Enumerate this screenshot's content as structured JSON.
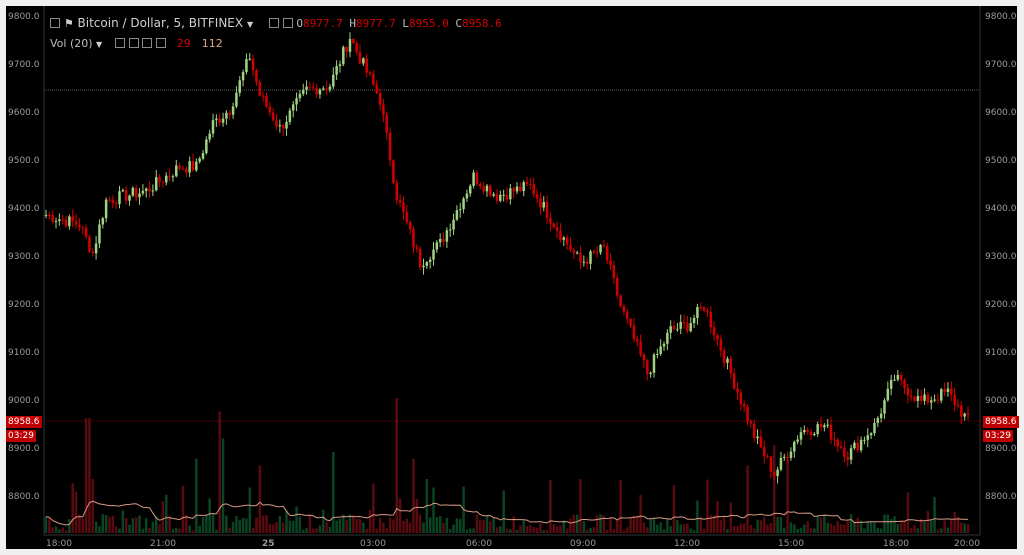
{
  "legend": {
    "symbol": "Bitcoin / Dollar, 5, BITFINEX",
    "open_label": "O",
    "open": "8977.7",
    "high_label": "H",
    "high": "8977.7",
    "low_label": "L",
    "low": "8955.0",
    "close_label": "C",
    "close": "8958.6",
    "volume_label": "Vol (20)",
    "volume_value": "29",
    "volume_ma_value": "112"
  },
  "price_tag": {
    "value": "8958.6",
    "countdown": "03:29"
  },
  "colors": {
    "background": "#000000",
    "up": "#9fd283",
    "down": "#d40000",
    "vol_up": "#0b4424",
    "vol_down": "#5a0b10",
    "vol_ma": "#d79a84",
    "crosshair": "#666666"
  },
  "chart_data": {
    "type": "candlestick",
    "symbol": "Bitcoin / Dollar",
    "interval": "5",
    "exchange": "BITFINEX",
    "y_ticks": [
      "9800.0",
      "9700.0",
      "9600.0",
      "9500.0",
      "9400.0",
      "9300.0",
      "9200.0",
      "9100.0",
      "9000.0",
      "8900.0",
      "8800.0"
    ],
    "x_ticks": [
      "18:00",
      "21:00",
      "25",
      "03:00",
      "06:00",
      "09:00",
      "12:00",
      "15:00",
      "18:00",
      "20:00"
    ],
    "ylim": [
      8740,
      9820
    ],
    "key_points": [
      {
        "t": 0,
        "price": 9390
      },
      {
        "t": 10,
        "price": 9370
      },
      {
        "t": 14,
        "price": 9310
      },
      {
        "t": 18,
        "price": 9420
      },
      {
        "t": 30,
        "price": 9440
      },
      {
        "t": 40,
        "price": 9490
      },
      {
        "t": 45,
        "price": 9490
      },
      {
        "t": 50,
        "price": 9580
      },
      {
        "t": 55,
        "price": 9610
      },
      {
        "t": 61,
        "price": 9720
      },
      {
        "t": 64,
        "price": 9640
      },
      {
        "t": 70,
        "price": 9570
      },
      {
        "t": 78,
        "price": 9650
      },
      {
        "t": 85,
        "price": 9660
      },
      {
        "t": 91,
        "price": 9760
      },
      {
        "t": 100,
        "price": 9630
      },
      {
        "t": 105,
        "price": 9430
      },
      {
        "t": 112,
        "price": 9290
      },
      {
        "t": 118,
        "price": 9330
      },
      {
        "t": 128,
        "price": 9470
      },
      {
        "t": 135,
        "price": 9430
      },
      {
        "t": 145,
        "price": 9450
      },
      {
        "t": 155,
        "price": 9340
      },
      {
        "t": 160,
        "price": 9290
      },
      {
        "t": 167,
        "price": 9320
      },
      {
        "t": 172,
        "price": 9200
      },
      {
        "t": 180,
        "price": 9060
      },
      {
        "t": 187,
        "price": 9150
      },
      {
        "t": 192,
        "price": 9160
      },
      {
        "t": 197,
        "price": 9200
      },
      {
        "t": 205,
        "price": 9060
      },
      {
        "t": 212,
        "price": 8930
      },
      {
        "t": 218,
        "price": 8850
      },
      {
        "t": 226,
        "price": 8940
      },
      {
        "t": 233,
        "price": 8950
      },
      {
        "t": 240,
        "price": 8890
      },
      {
        "t": 248,
        "price": 8950
      },
      {
        "t": 254,
        "price": 9050
      },
      {
        "t": 262,
        "price": 9000
      },
      {
        "t": 270,
        "price": 9020
      },
      {
        "t": 276,
        "price": 8960
      }
    ],
    "volume_spikes": [
      {
        "t": 12,
        "rel": 0.85
      },
      {
        "t": 13,
        "rel": 0.85
      },
      {
        "t": 14,
        "rel": 0.4
      },
      {
        "t": 45,
        "rel": 0.55
      },
      {
        "t": 52,
        "rel": 0.9
      },
      {
        "t": 53,
        "rel": 0.7
      },
      {
        "t": 64,
        "rel": 0.5
      },
      {
        "t": 86,
        "rel": 0.6
      },
      {
        "t": 105,
        "rel": 1.0
      },
      {
        "t": 110,
        "rel": 0.55
      },
      {
        "t": 114,
        "rel": 0.4
      },
      {
        "t": 160,
        "rel": 0.4
      },
      {
        "t": 210,
        "rel": 0.5
      },
      {
        "t": 218,
        "rel": 0.65
      },
      {
        "t": 222,
        "rel": 0.55
      }
    ]
  }
}
